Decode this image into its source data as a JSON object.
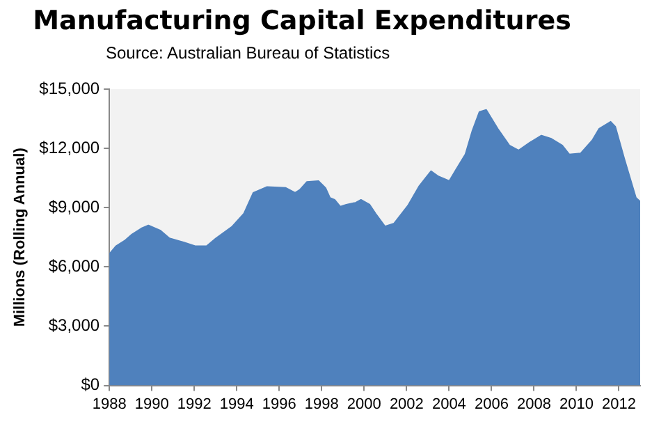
{
  "chart_data": {
    "type": "area",
    "title": "Manufacturing Capital Expenditures",
    "subtitle": "Source: Australian Bureau of Statistics",
    "ylabel": "Millions (Rolling Annual)",
    "x": [
      1988,
      1988.31,
      1988.75,
      1989.07,
      1989.51,
      1989.84,
      1990.39,
      1990.83,
      1991.49,
      1992.04,
      1992.58,
      1993.02,
      1993.79,
      1994.34,
      1994.78,
      1995.43,
      1996.31,
      1996.75,
      1996.97,
      1997.3,
      1997.85,
      1998.18,
      1998.39,
      1998.61,
      1998.88,
      1999.16,
      1999.6,
      1999.85,
      2000.26,
      2000.54,
      2000.98,
      2001.41,
      2002.06,
      2002.6,
      2003.15,
      2003.47,
      2004.01,
      2004.34,
      2004.77,
      2005.1,
      2005.43,
      2005.75,
      2006.29,
      2006.84,
      2007.27,
      2007.81,
      2008.35,
      2008.79,
      2009.33,
      2009.66,
      2010.2,
      2010.74,
      2011.07,
      2011.61,
      2011.83,
      2012.26,
      2012.8,
      2013
    ],
    "series": [
      {
        "color": "#4f81bd",
        "values": [
          6650,
          7050,
          7350,
          7650,
          7950,
          8100,
          7850,
          7450,
          7250,
          7050,
          7050,
          7450,
          8050,
          8700,
          9750,
          10050,
          10000,
          9750,
          9900,
          10300,
          10350,
          10000,
          9500,
          9400,
          9050,
          9150,
          9250,
          9400,
          9150,
          8700,
          8050,
          8200,
          9100,
          10100,
          10850,
          10600,
          10350,
          10950,
          11700,
          12900,
          13850,
          13950,
          13000,
          12150,
          11900,
          12300,
          12650,
          12500,
          12150,
          11700,
          11750,
          12400,
          13000,
          13350,
          13100,
          11450,
          9500,
          9300
        ]
      }
    ],
    "xlim": [
      1988,
      2013
    ],
    "xticks": [
      1988,
      1990,
      1992,
      1994,
      1996,
      1998,
      2000,
      2002,
      2004,
      2006,
      2008,
      2010,
      2012
    ],
    "ylim": [
      0,
      15000
    ],
    "yticks": [
      {
        "value": 0,
        "label": "$0"
      },
      {
        "value": 3000,
        "label": "$3,000"
      },
      {
        "value": 6000,
        "label": "$6,000"
      },
      {
        "value": 9000,
        "label": "$9,000"
      },
      {
        "value": 12000,
        "label": "$12,000"
      },
      {
        "value": 15000,
        "label": "$15,000"
      }
    ],
    "grid": false,
    "legend": false
  }
}
